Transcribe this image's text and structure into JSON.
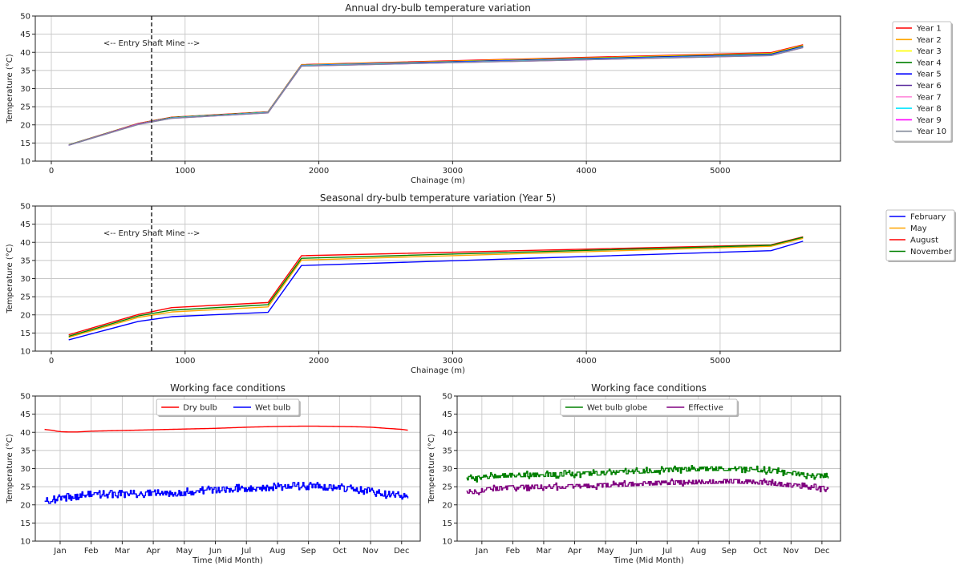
{
  "chart_data": [
    {
      "type": "line",
      "title": "Annual dry-bulb temperature variation",
      "xlabel": "Chainage (m)",
      "ylabel": "Temperature (°C)",
      "xlim": [
        -120,
        5900
      ],
      "ylim": [
        10,
        50
      ],
      "xticks": [
        0,
        1000,
        2000,
        3000,
        4000,
        5000
      ],
      "yticks": [
        10,
        15,
        20,
        25,
        30,
        35,
        40,
        45,
        50
      ],
      "grid": true,
      "legend_position": "outside-right",
      "entry_shaft_x": 750,
      "annotation": "<-- Entry Shaft   Mine -->",
      "x": [
        130,
        650,
        900,
        1620,
        1870,
        5380,
        5620
      ],
      "series": [
        {
          "name": "Year 1",
          "color": "#ff0000",
          "values": [
            14.5,
            20.4,
            22.1,
            23.6,
            36.6,
            39.9,
            42.1
          ]
        },
        {
          "name": "Year 2",
          "color": "#ffa500",
          "values": [
            14.5,
            20.3,
            22.0,
            23.5,
            36.5,
            39.7,
            41.9
          ]
        },
        {
          "name": "Year 3",
          "color": "#ffff00",
          "values": [
            14.5,
            20.3,
            22.0,
            23.5,
            36.5,
            39.6,
            41.8
          ]
        },
        {
          "name": "Year 4",
          "color": "#008000",
          "values": [
            14.5,
            20.3,
            22.0,
            23.5,
            36.4,
            39.5,
            41.7
          ]
        },
        {
          "name": "Year 5",
          "color": "#0000ff",
          "values": [
            14.4,
            20.2,
            21.9,
            23.4,
            36.4,
            39.4,
            41.6
          ]
        },
        {
          "name": "Year 6",
          "color": "#5b2c9f",
          "values": [
            14.4,
            20.2,
            21.9,
            23.4,
            36.3,
            39.3,
            41.5
          ]
        },
        {
          "name": "Year 7",
          "color": "#ff8cdc",
          "values": [
            14.4,
            20.2,
            21.9,
            23.4,
            36.3,
            39.2,
            41.4
          ]
        },
        {
          "name": "Year 8",
          "color": "#00e5ff",
          "values": [
            14.4,
            20.2,
            21.9,
            23.4,
            36.3,
            39.2,
            41.4
          ]
        },
        {
          "name": "Year 9",
          "color": "#ff00ff",
          "values": [
            14.4,
            20.2,
            21.8,
            23.3,
            36.2,
            39.1,
            41.3
          ]
        },
        {
          "name": "Year 10",
          "color": "#808898",
          "values": [
            14.4,
            20.1,
            21.8,
            23.3,
            36.2,
            39.1,
            41.3
          ]
        }
      ]
    },
    {
      "type": "line",
      "title": "Seasonal dry-bulb temperature variation (Year 5)",
      "xlabel": "Chainage (m)",
      "ylabel": "Temperature (°C)",
      "xlim": [
        -120,
        5900
      ],
      "ylim": [
        10,
        50
      ],
      "xticks": [
        0,
        1000,
        2000,
        3000,
        4000,
        5000
      ],
      "yticks": [
        10,
        15,
        20,
        25,
        30,
        35,
        40,
        45,
        50
      ],
      "grid": true,
      "legend_position": "outside-right",
      "entry_shaft_x": 750,
      "annotation": "<-- Entry Shaft   Mine -->",
      "x": [
        130,
        650,
        900,
        1620,
        1870,
        5380,
        5620
      ],
      "series": [
        {
          "name": "February",
          "color": "#0000ff",
          "values": [
            13.1,
            18.2,
            19.5,
            20.7,
            33.6,
            37.7,
            40.3
          ]
        },
        {
          "name": "May",
          "color": "#ffa500",
          "values": [
            13.8,
            19.3,
            20.8,
            22.2,
            35.1,
            38.9,
            41.1
          ]
        },
        {
          "name": "August",
          "color": "#ff0000",
          "values": [
            14.5,
            20.1,
            22.0,
            23.4,
            36.3,
            39.3,
            41.5
          ]
        },
        {
          "name": "November",
          "color": "#008000",
          "values": [
            14.1,
            19.7,
            21.3,
            22.8,
            35.6,
            39.2,
            41.4
          ]
        }
      ]
    },
    {
      "type": "line",
      "title": "Working face conditions",
      "xlabel": "Time (Mid Month)",
      "ylabel": "Temperature (°C)",
      "xlim": [
        -0.8,
        11.6
      ],
      "ylim": [
        10,
        50
      ],
      "xticks": [
        0,
        1,
        2,
        3,
        4,
        5,
        6,
        7,
        8,
        9,
        10,
        11
      ],
      "xticklabels": [
        "Jan",
        "Feb",
        "Mar",
        "Apr",
        "May",
        "Jun",
        "Jul",
        "Aug",
        "Sep",
        "Oct",
        "Nov",
        "Dec"
      ],
      "yticks": [
        10,
        15,
        20,
        25,
        30,
        35,
        40,
        45,
        50
      ],
      "grid": true,
      "legend_position": "upper center",
      "x": [
        -0.5,
        -0.3,
        0,
        0.5,
        1,
        2,
        3,
        4,
        5,
        6,
        7,
        8,
        9,
        10,
        10.5,
        11,
        11.2
      ],
      "series": [
        {
          "name": "Dry bulb",
          "color": "#ff0000",
          "style": "smooth",
          "values": [
            40.8,
            40.6,
            40.2,
            40.1,
            40.3,
            40.5,
            40.7,
            40.9,
            41.1,
            41.4,
            41.6,
            41.7,
            41.6,
            41.4,
            41.1,
            40.8,
            40.6
          ]
        },
        {
          "name": "Wet bulb",
          "color": "#0000ff",
          "style": "noisy",
          "noise": 1.0,
          "values": [
            21.5,
            21.4,
            21.8,
            22.4,
            22.8,
            23.0,
            23.1,
            23.6,
            24.3,
            24.7,
            25.0,
            25.2,
            24.8,
            23.6,
            22.8,
            22.6,
            22.8
          ]
        }
      ]
    },
    {
      "type": "line",
      "title": "Working face conditions",
      "xlabel": "Time (Mid Month)",
      "ylabel": "Temperature (°C)",
      "xlim": [
        -0.8,
        11.6
      ],
      "ylim": [
        10,
        50
      ],
      "xticks": [
        0,
        1,
        2,
        3,
        4,
        5,
        6,
        7,
        8,
        9,
        10,
        11
      ],
      "xticklabels": [
        "Jan",
        "Feb",
        "Mar",
        "Apr",
        "May",
        "Jun",
        "Jul",
        "Aug",
        "Sep",
        "Oct",
        "Nov",
        "Dec"
      ],
      "yticks": [
        10,
        15,
        20,
        25,
        30,
        35,
        40,
        45,
        50
      ],
      "grid": true,
      "legend_position": "upper center",
      "x": [
        -0.5,
        -0.3,
        0,
        0.5,
        1,
        2,
        3,
        4,
        5,
        6,
        7,
        8,
        9,
        10,
        10.5,
        11,
        11.2
      ],
      "series": [
        {
          "name": "Wet bulb globe",
          "color": "#008000",
          "style": "noisy",
          "noise": 0.8,
          "values": [
            27.4,
            27.2,
            27.6,
            28.0,
            28.2,
            28.3,
            28.5,
            28.8,
            29.2,
            29.6,
            29.9,
            30.0,
            29.6,
            28.8,
            28.2,
            28.0,
            28.3
          ]
        },
        {
          "name": "Effective",
          "color": "#800080",
          "style": "noisy",
          "noise": 0.8,
          "values": [
            23.8,
            23.6,
            24.0,
            24.5,
            24.8,
            25.0,
            25.1,
            25.4,
            25.8,
            26.1,
            26.3,
            26.5,
            26.2,
            25.4,
            24.9,
            24.6,
            24.8
          ]
        }
      ]
    }
  ]
}
